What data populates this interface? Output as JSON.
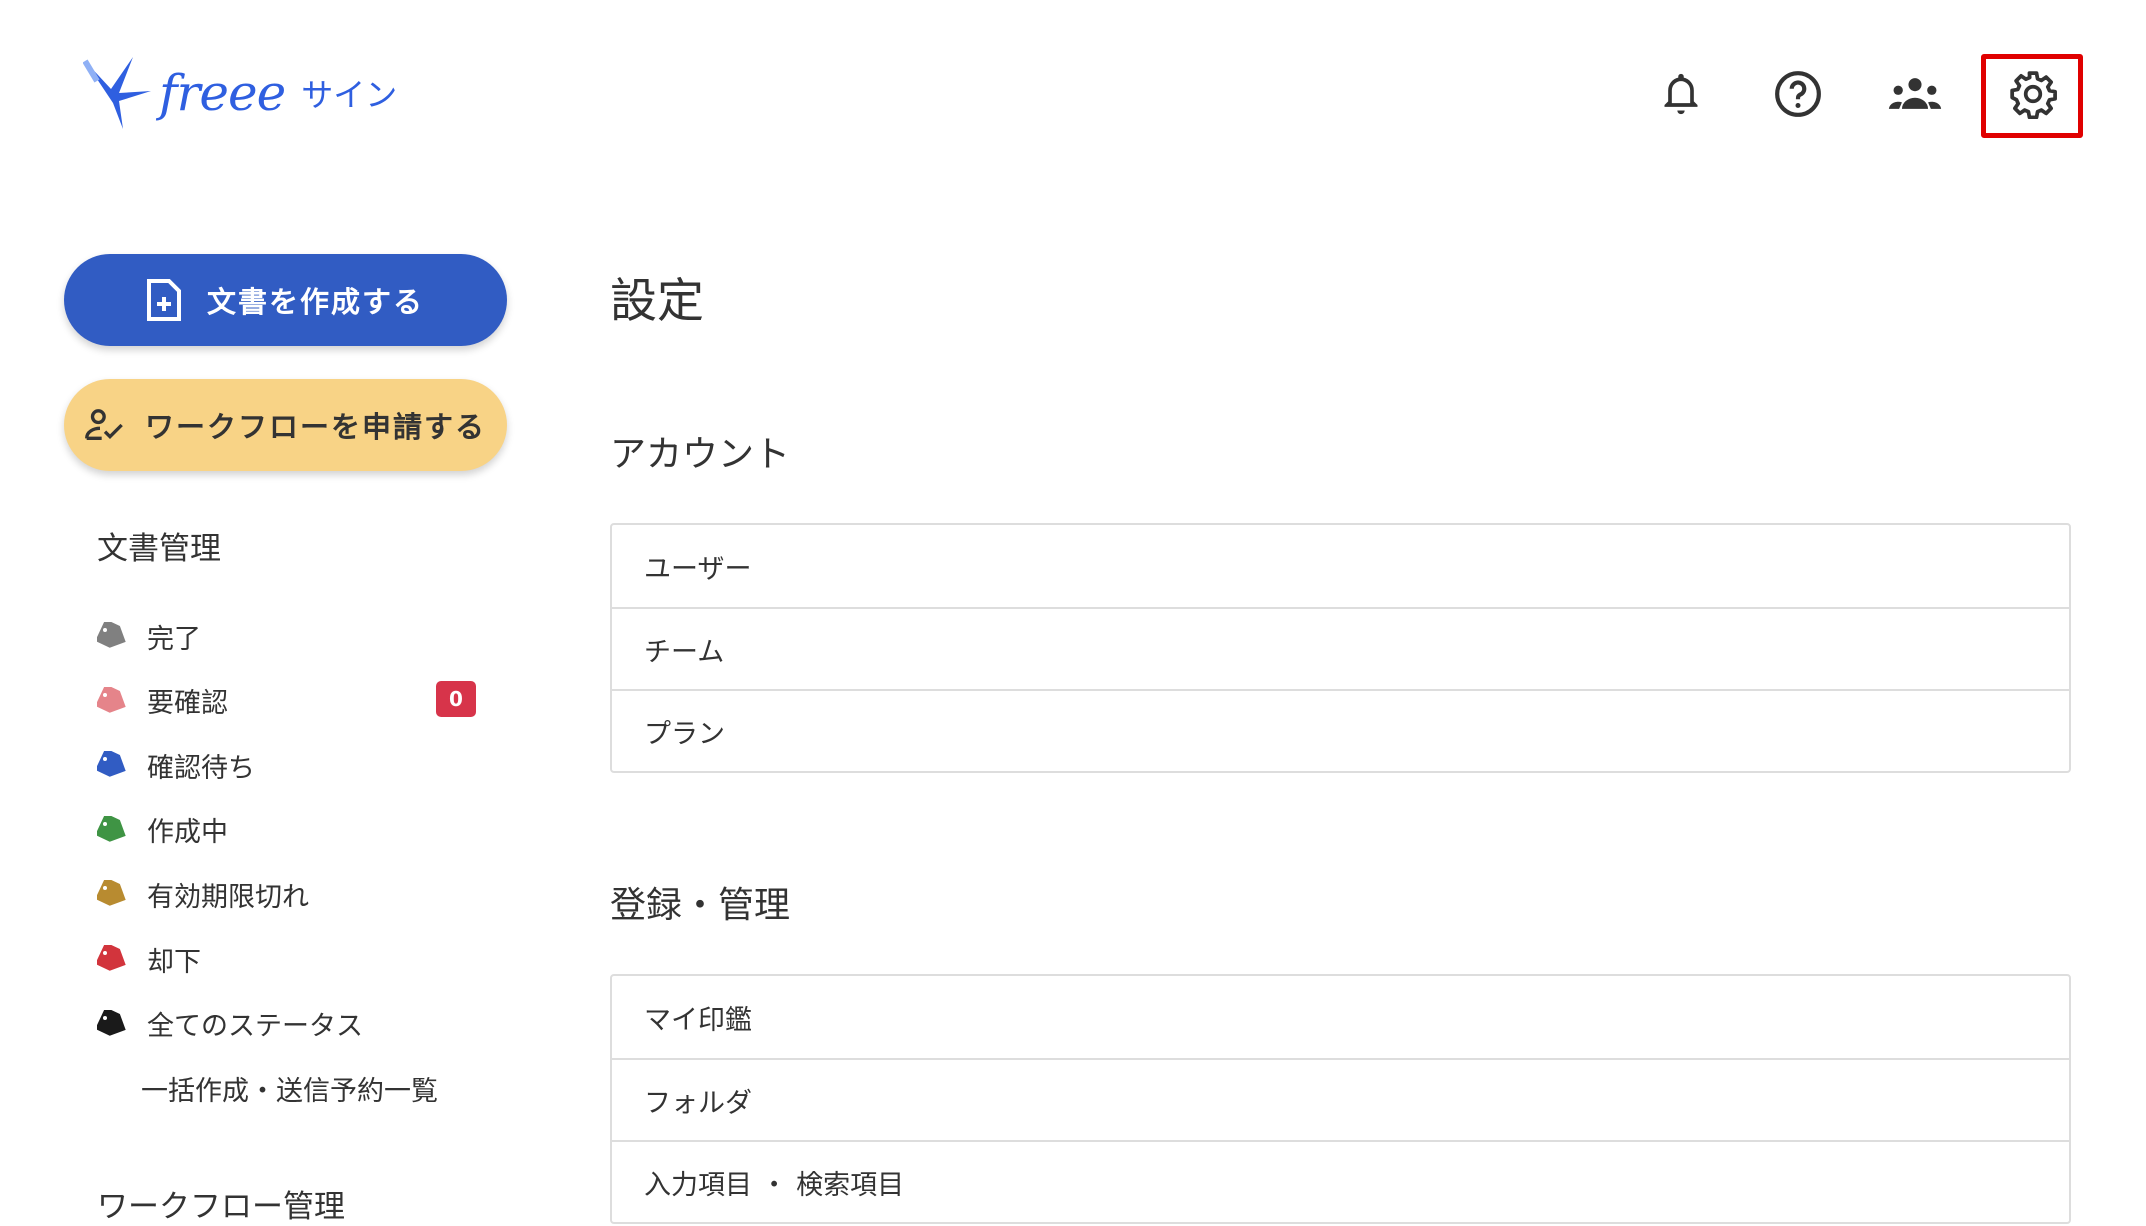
{
  "header": {
    "logo": {
      "word": "freee",
      "product": "サイン",
      "color": "#2f5fe0"
    },
    "icons": [
      "bell-icon",
      "help-icon",
      "team-icon",
      "gear-icon"
    ],
    "highlight_color": "#e00000"
  },
  "sidebar": {
    "create_button": "文書を作成する",
    "workflow_button": "ワークフローを申請する",
    "doc_section": "文書管理",
    "items": [
      {
        "label": "完了",
        "color": "#808080"
      },
      {
        "label": "要確認",
        "color": "#e5848a",
        "badge": "0"
      },
      {
        "label": "確認待ち",
        "color": "#315cc3"
      },
      {
        "label": "作成中",
        "color": "#3f9444"
      },
      {
        "label": "有効期限切れ",
        "color": "#b88b30"
      },
      {
        "label": "却下",
        "color": "#d2343c"
      },
      {
        "label": "全てのステータス",
        "color": "#1a1a1a"
      }
    ],
    "bulk_link": "一括作成・送信予約一覧",
    "workflow_section": "ワークフロー管理"
  },
  "main": {
    "title": "設定",
    "sections": [
      {
        "heading": "アカウント",
        "rows": [
          "ユーザー",
          "チーム",
          "プラン"
        ]
      },
      {
        "heading": "登録・管理",
        "rows": [
          "マイ印鑑",
          "フォルダ",
          "入力項目 ・ 検索項目"
        ]
      }
    ]
  }
}
